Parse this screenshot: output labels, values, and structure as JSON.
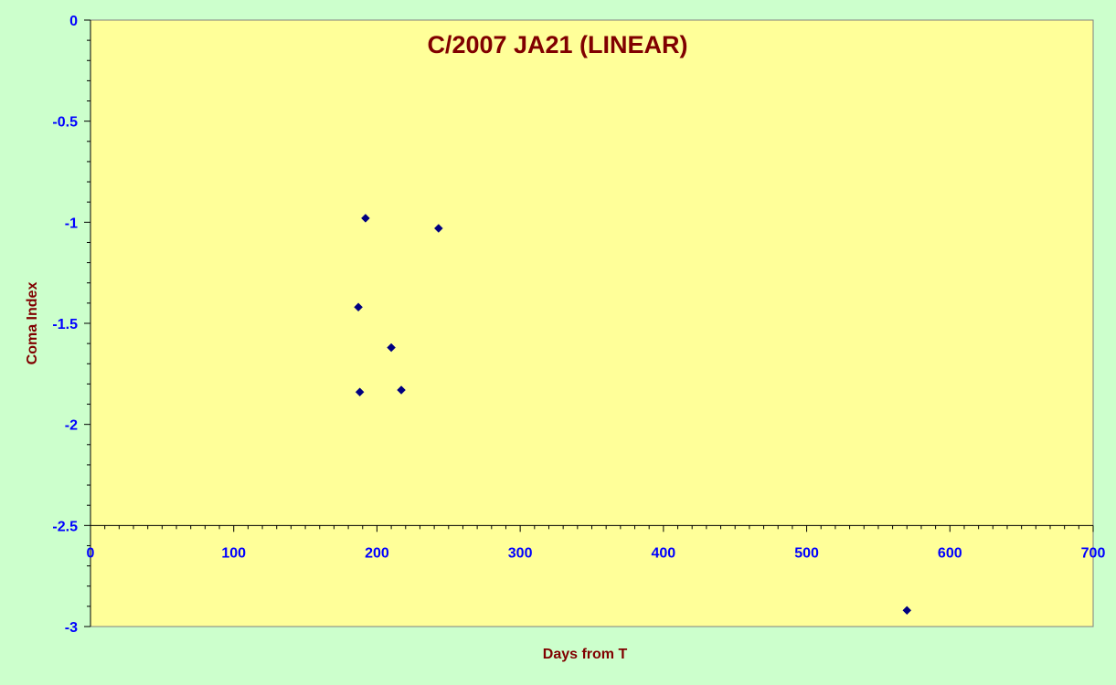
{
  "chart_data": {
    "type": "scatter",
    "title": "C/2007 JA21 (LINEAR)",
    "xlabel": "Days from T",
    "ylabel": "Coma Index",
    "xlim": [
      0,
      700
    ],
    "ylim": [
      -3,
      0
    ],
    "x_ticks": [
      0,
      100,
      200,
      300,
      400,
      500,
      600,
      700
    ],
    "y_ticks": [
      0,
      -0.5,
      -1,
      -1.5,
      -2,
      -2.5,
      -3
    ],
    "x_tick_labels": [
      "0",
      "100",
      "200",
      "300",
      "400",
      "500",
      "600",
      "700"
    ],
    "y_tick_labels": [
      "0",
      "-0.5",
      "-1",
      "-1.5",
      "-2",
      "-2.5",
      "-3"
    ],
    "x_axis_crosses_y_at": -2.5,
    "grid": false,
    "legend": "none",
    "series": [
      {
        "points": [
          {
            "x": 192,
            "y": -0.98
          },
          {
            "x": 243,
            "y": -1.03
          },
          {
            "x": 187,
            "y": -1.42
          },
          {
            "x": 210,
            "y": -1.62
          },
          {
            "x": 188,
            "y": -1.84
          },
          {
            "x": 217,
            "y": -1.83
          },
          {
            "x": 570,
            "y": -2.92
          }
        ]
      }
    ],
    "colors": {
      "page_background": "#ccffcc",
      "plot_background": "#ffff99",
      "marker": "#000080",
      "tick_labels": "#0000ff",
      "titles": "#800000"
    }
  }
}
